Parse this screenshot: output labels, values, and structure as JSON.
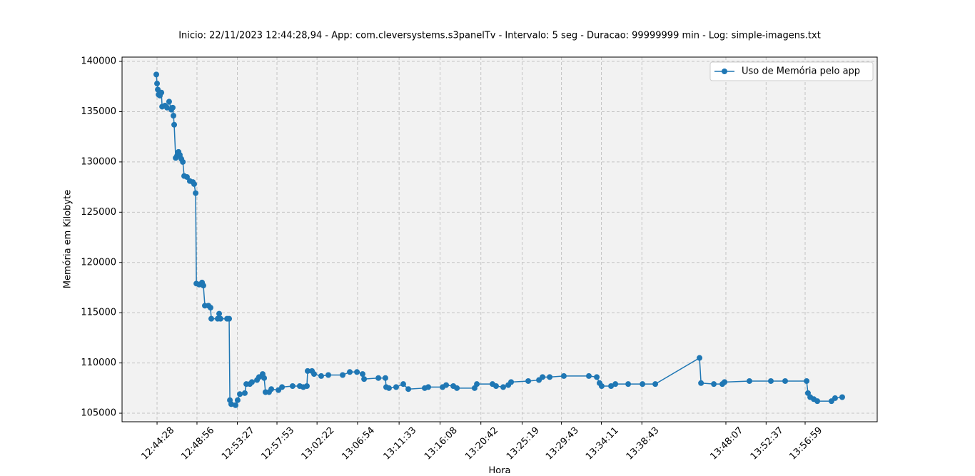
{
  "chart_data": {
    "type": "line",
    "title": "Inicio: 22/11/2023 12:44:28,94 - App: com.cleversystems.s3panelTv - Intervalo: 5 seg - Duracao: 99999999 min - Log: simple-imagens.txt",
    "x_label": "Hora",
    "y_label": "Memória em Kilobyte",
    "x": [
      "12:44:23",
      "12:44:28",
      "12:44:33",
      "12:44:38",
      "12:44:47",
      "12:44:57",
      "12:45:02",
      "12:45:21",
      "12:45:35",
      "12:45:49",
      "12:46:04",
      "12:46:13",
      "12:46:18",
      "12:46:23",
      "12:46:33",
      "12:46:42",
      "12:46:52",
      "12:47:01",
      "12:47:11",
      "12:47:21",
      "12:47:30",
      "12:47:49",
      "12:48:08",
      "12:48:28",
      "12:48:37",
      "12:48:47",
      "12:48:52",
      "12:49:11",
      "12:49:30",
      "12:49:39",
      "12:49:49",
      "12:50:13",
      "12:50:27",
      "12:50:32",
      "12:51:15",
      "12:51:25",
      "12:51:34",
      "12:52:18",
      "12:52:32",
      "12:52:37",
      "12:52:46",
      "12:53:15",
      "12:53:29",
      "12:53:44",
      "12:54:17",
      "12:54:27",
      "12:54:51",
      "12:55:05",
      "12:55:39",
      "12:55:53",
      "12:56:17",
      "12:56:27",
      "12:56:36",
      "12:57:00",
      "12:57:15",
      "12:58:03",
      "12:58:27",
      "12:59:38",
      "13:00:26",
      "13:00:50",
      "13:01:14",
      "13:01:19",
      "13:01:48",
      "13:02:02",
      "13:02:50",
      "13:03:38",
      "13:05:14",
      "13:06:02",
      "13:06:50",
      "13:07:28",
      "13:07:38",
      "13:09:14",
      "13:10:01",
      "13:10:06",
      "13:10:25",
      "13:11:13",
      "13:12:01",
      "13:12:35",
      "13:14:25",
      "13:14:49",
      "13:16:25",
      "13:16:49",
      "13:17:37",
      "13:18:01",
      "13:20:00",
      "13:20:15",
      "13:22:00",
      "13:22:24",
      "13:23:12",
      "13:23:46",
      "13:24:05",
      "13:26:00",
      "13:27:12",
      "13:27:36",
      "13:28:24",
      "13:29:59",
      "13:32:47",
      "13:33:40",
      "13:33:59",
      "13:34:13",
      "13:35:16",
      "13:35:45",
      "13:37:11",
      "13:38:47",
      "13:40:13",
      "13:45:10",
      "13:45:20",
      "13:46:46",
      "13:47:43",
      "13:47:58",
      "13:50:45",
      "13:53:09",
      "13:54:45",
      "13:57:09",
      "13:57:18",
      "13:57:33",
      "13:57:57",
      "13:58:21",
      "13:59:56",
      "14:00:20",
      "14:01:08"
    ],
    "series": [
      {
        "name": "Uso de Memória pelo app",
        "color": "#1f77b4",
        "values": [
          138700,
          137800,
          137200,
          136700,
          136600,
          136900,
          135500,
          135600,
          135400,
          136000,
          135200,
          135400,
          134600,
          133700,
          130400,
          130600,
          131000,
          130700,
          130300,
          130000,
          128600,
          128500,
          128100,
          128000,
          127800,
          126900,
          117900,
          117800,
          118000,
          117700,
          115700,
          115700,
          115500,
          114400,
          114400,
          114900,
          114400,
          114400,
          114400,
          106300,
          105900,
          105800,
          106300,
          106900,
          107000,
          107900,
          107900,
          108100,
          108300,
          108600,
          108900,
          108500,
          107100,
          107100,
          107400,
          107300,
          107600,
          107700,
          107700,
          107600,
          107700,
          109200,
          109200,
          108900,
          108700,
          108800,
          108800,
          109100,
          109100,
          108900,
          108400,
          108500,
          108500,
          107600,
          107500,
          107600,
          107900,
          107400,
          107500,
          107600,
          107600,
          107800,
          107700,
          107500,
          107500,
          107900,
          107900,
          107700,
          107600,
          107800,
          108100,
          108200,
          108300,
          108600,
          108600,
          108700,
          108700,
          108600,
          108000,
          107700,
          107700,
          107900,
          107900,
          107900,
          107900,
          110500,
          108000,
          107900,
          107900,
          108100,
          108200,
          108200,
          108200,
          108200,
          107000,
          106600,
          106400,
          106200,
          106200,
          106500,
          106600
        ]
      }
    ],
    "xlim": [
      "12:40:33",
      "14:05:03"
    ],
    "xticks": [
      "12:44:28",
      "12:48:56",
      "12:53:27",
      "12:57:53",
      "13:02:22",
      "13:06:54",
      "13:11:33",
      "13:16:08",
      "13:20:42",
      "13:25:19",
      "13:29:43",
      "13:34:11",
      "13:38:43",
      "13:48:07",
      "13:52:37",
      "13:56:59"
    ],
    "ylim": [
      104150,
      140430
    ],
    "yticks": [
      105000,
      110000,
      115000,
      120000,
      125000,
      130000,
      135000,
      140000
    ],
    "grid": true,
    "legend": "upper right"
  }
}
